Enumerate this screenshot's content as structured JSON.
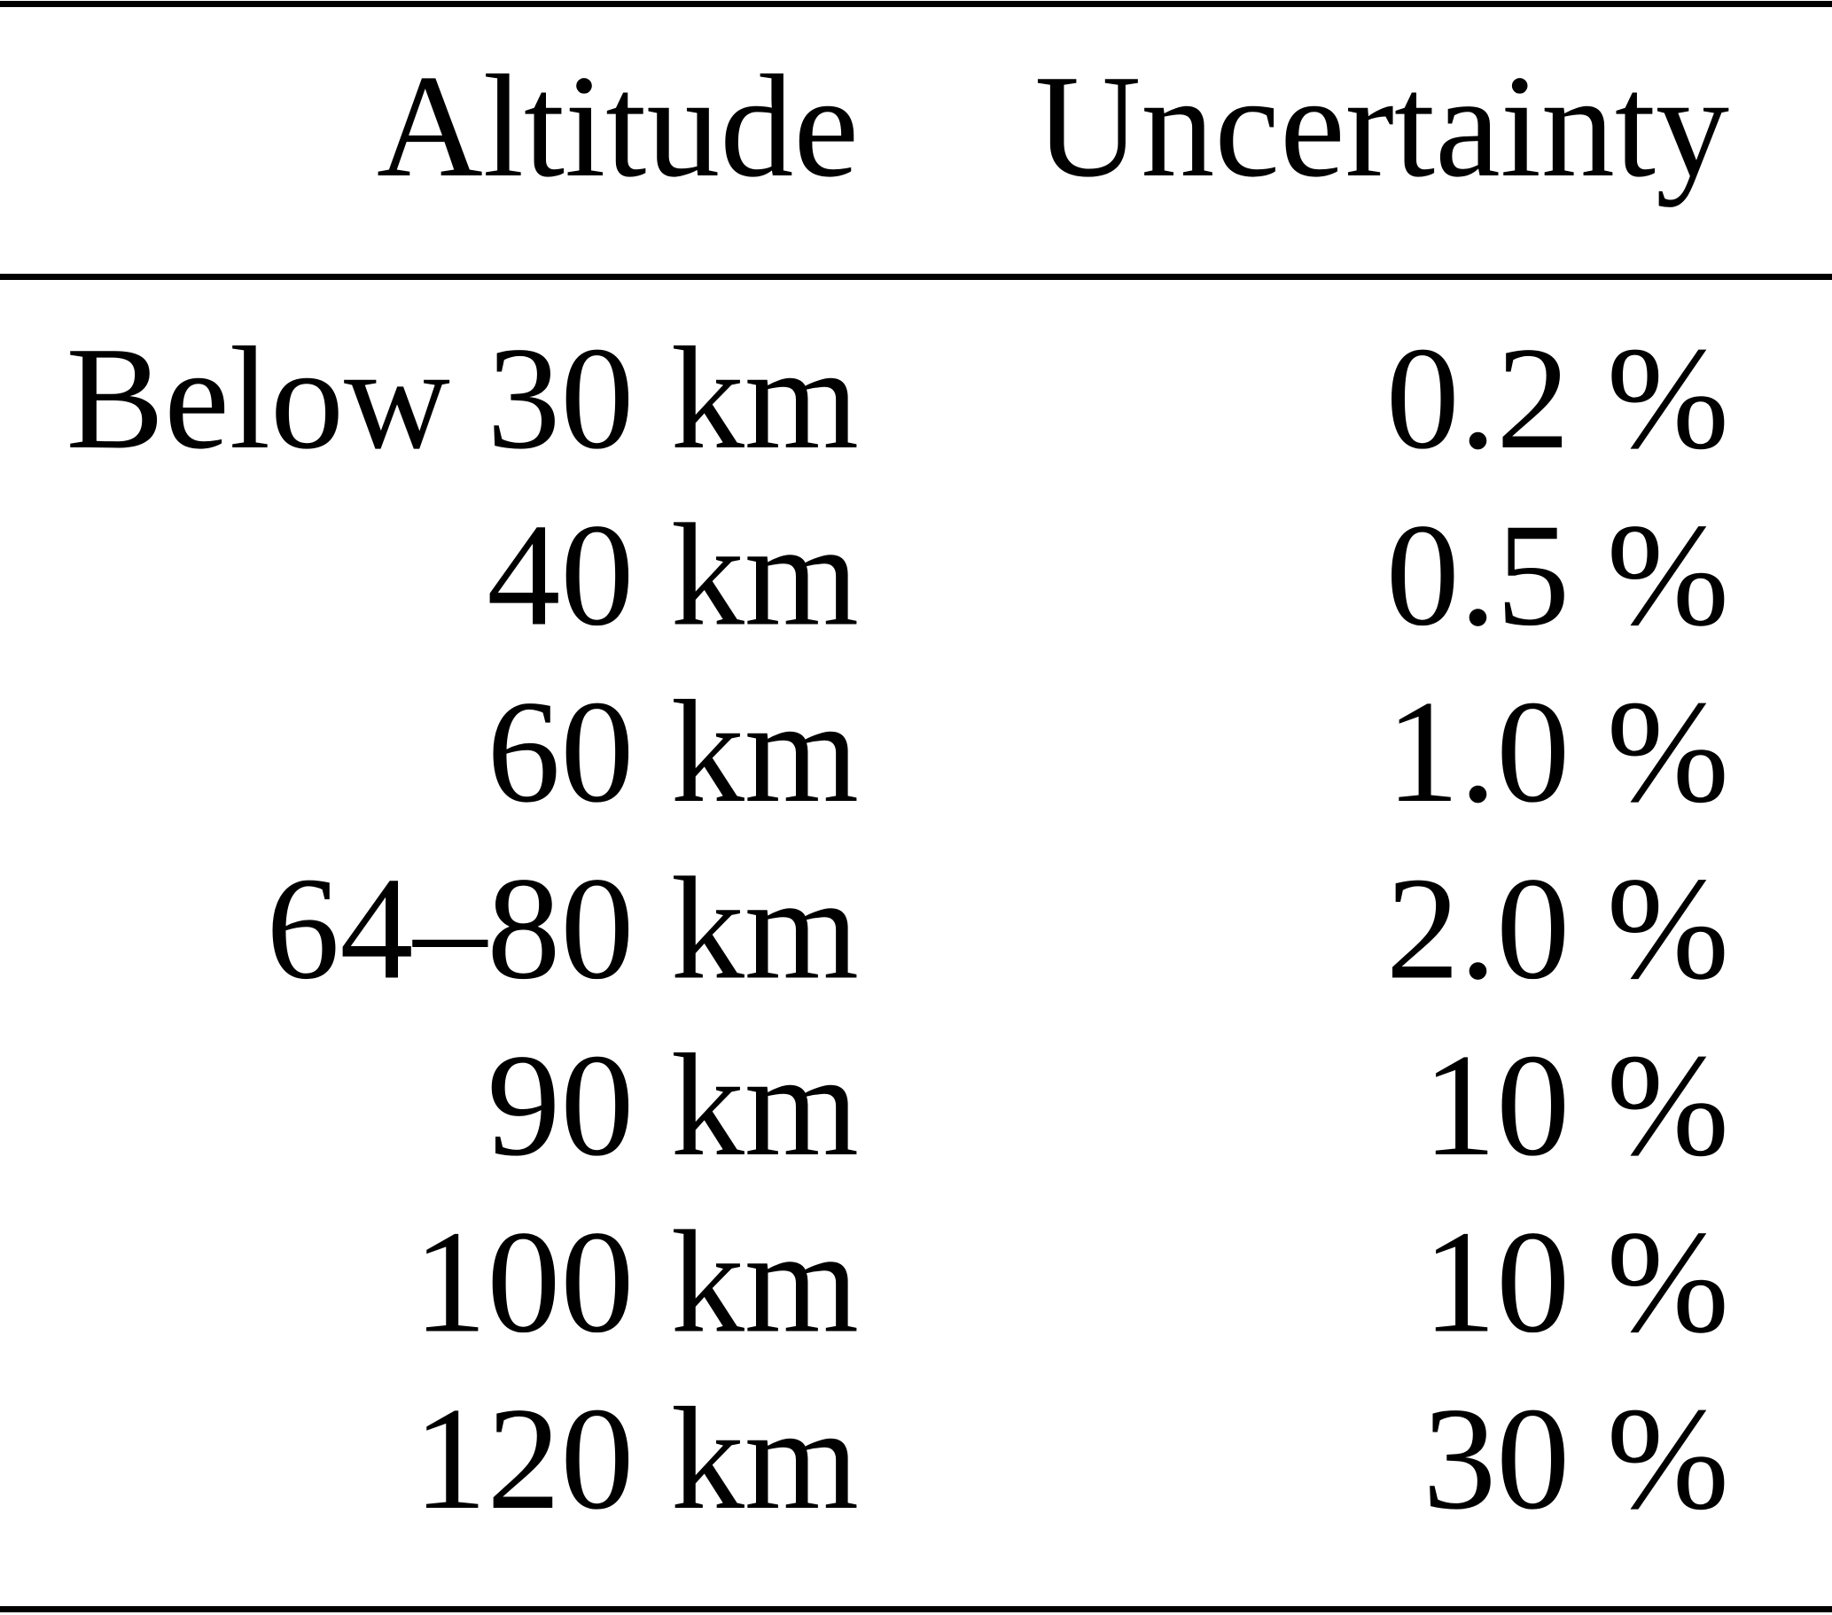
{
  "table": {
    "header": [
      "Altitude",
      "Uncertainty"
    ],
    "rows": [
      [
        "Below 30 km",
        "0.2 %"
      ],
      [
        "40 km",
        "0.5 %"
      ],
      [
        "60 km",
        "1.0 %"
      ],
      [
        "64–80 km",
        "2.0 %"
      ],
      [
        "90 km",
        "10 %"
      ],
      [
        "100 km",
        "10 %"
      ],
      [
        "120 km",
        "30 %"
      ]
    ]
  }
}
